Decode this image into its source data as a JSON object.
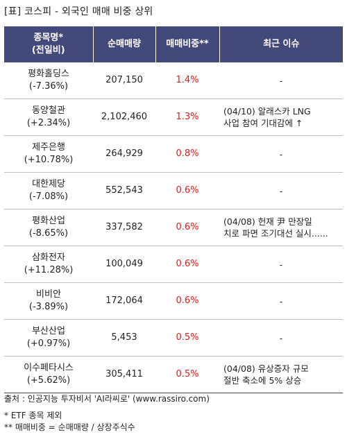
{
  "title": "[표] 코스피 - 외국인 매매 비중 상위",
  "columns": {
    "name": [
      "종목명*",
      "(전일비)"
    ],
    "volume": "순매매량",
    "ratio": "매매비중**",
    "issue": "최근 이슈"
  },
  "rows": [
    {
      "name": "평화홀딩스",
      "change": "(-7.36%)",
      "volume": "207,150",
      "ratio": "1.4%",
      "issue": [
        "-"
      ]
    },
    {
      "name": "동양철관",
      "change": "(+2.34%)",
      "volume": "2,102,460",
      "ratio": "1.3%",
      "issue": [
        "(04/10) 알래스카 LNG",
        "사업 참여 기대감에 ↑"
      ]
    },
    {
      "name": "제주은행",
      "change": "(+10.78%)",
      "volume": "264,929",
      "ratio": "0.8%",
      "issue": [
        "-"
      ]
    },
    {
      "name": "대한제당",
      "change": "(-7.08%)",
      "volume": "552,543",
      "ratio": "0.6%",
      "issue": [
        "-"
      ]
    },
    {
      "name": "평화산업",
      "change": "(-8.65%)",
      "volume": "337,582",
      "ratio": "0.6%",
      "issue": [
        "(04/08) 헌재 尹 만장일",
        "치로 파면 조기대선 실시......"
      ]
    },
    {
      "name": "삼화전자",
      "change": "(+11.28%)",
      "volume": "100,049",
      "ratio": "0.6%",
      "issue": [
        "-"
      ]
    },
    {
      "name": "비비안",
      "change": "(-3.89%)",
      "volume": "172,064",
      "ratio": "0.6%",
      "issue": [
        "-"
      ]
    },
    {
      "name": "부산산업",
      "change": "(+0.97%)",
      "volume": "5,453",
      "ratio": "0.5%",
      "issue": [
        "-"
      ]
    },
    {
      "name": "이수페타시스",
      "change": "(+5.62%)",
      "volume": "305,411",
      "ratio": "0.5%",
      "issue": [
        "(04/08) 유상증자 규모",
        "절반 축소에 5% 상승"
      ]
    }
  ],
  "footer": {
    "source": "출처 : 인공지능 투자비서 'AI라씨로' (www.rassiro.com)",
    "note1": "* ETF 종목 제외",
    "note2": "** 매매비중 = 순매매량 / 상장주식수"
  },
  "colors": {
    "header_bg": "#434a7a",
    "ratio_text": "#e11919"
  }
}
